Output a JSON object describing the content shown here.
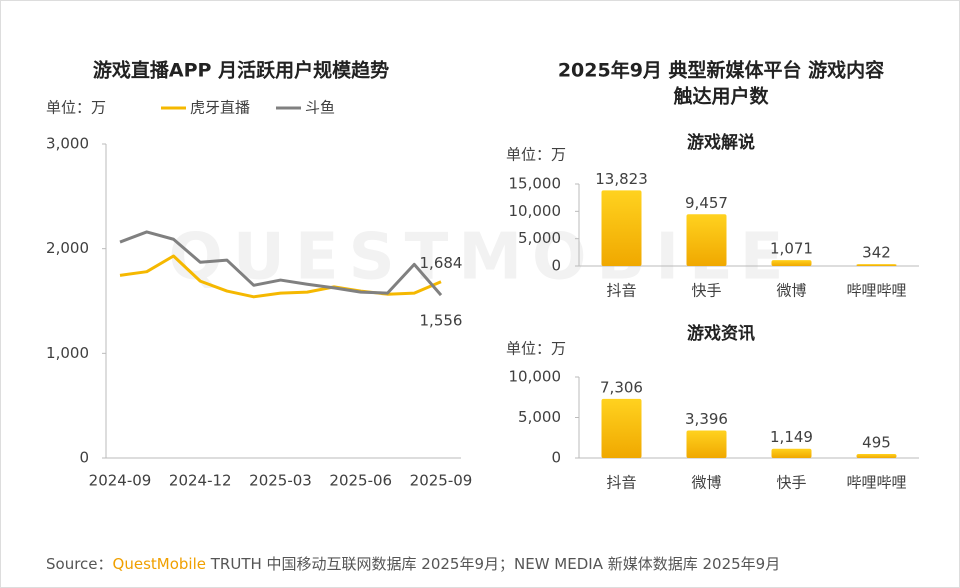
{
  "chart_data": [
    {
      "type": "line",
      "title": "游戏直播APP 月活跃用户规模趋势",
      "unit": "单位：万",
      "categories": [
        "2024-09",
        null,
        null,
        "2024-12",
        null,
        null,
        "2025-03",
        null,
        null,
        "2025-06",
        null,
        null,
        "2025-09"
      ],
      "series": [
        {
          "name": "虎牙直播",
          "color": "#f5b800",
          "values": [
            1745,
            1780,
            1930,
            1690,
            1595,
            1540,
            1575,
            1585,
            1635,
            1595,
            1565,
            1575,
            1684
          ],
          "value_labels": [
            null,
            null,
            null,
            null,
            null,
            null,
            null,
            null,
            null,
            null,
            null,
            null,
            "1,684"
          ]
        },
        {
          "name": "斗鱼",
          "color": "#808080",
          "values": [
            2063,
            2160,
            2090,
            1870,
            1890,
            1650,
            1700,
            1660,
            1625,
            1585,
            1575,
            1850,
            1556
          ],
          "value_labels": [
            null,
            null,
            null,
            null,
            null,
            null,
            null,
            null,
            null,
            null,
            null,
            null,
            "1,556"
          ]
        }
      ],
      "ylim": [
        0,
        3000
      ],
      "yticks": [
        0,
        {
          "value": 1000,
          "label": "1,000"
        },
        {
          "value": 2000,
          "label": "2,000"
        },
        {
          "value": 3000,
          "label": "3,000"
        }
      ]
    },
    {
      "type": "bar",
      "title": "游戏解说",
      "unit": "单位：万",
      "categories": [
        "抖音",
        "快手",
        "微博",
        "哔哩哔哩"
      ],
      "values": [
        13823,
        9457,
        1071,
        342
      ],
      "value_labels": [
        "13,823",
        "9,457",
        "1,071",
        "342"
      ],
      "color": "#f5b800",
      "ylim": [
        0,
        15000
      ],
      "yticks": [
        0,
        {
          "value": 5000,
          "label": "5,000"
        },
        {
          "value": 10000,
          "label": "10,000"
        },
        {
          "value": 15000,
          "label": "15,000"
        }
      ]
    },
    {
      "type": "bar",
      "title": "游戏资讯",
      "unit": "单位：万",
      "categories": [
        "抖音",
        "微博",
        "快手",
        "哔哩哔哩"
      ],
      "values": [
        7306,
        3396,
        1149,
        495
      ],
      "value_labels": [
        "7,306",
        "3,396",
        "1,149",
        "495"
      ],
      "color": "#f5b800",
      "ylim": [
        0,
        10000
      ],
      "yticks": [
        0,
        {
          "value": 5000,
          "label": "5,000"
        },
        {
          "value": 10000,
          "label": "10,000"
        }
      ]
    }
  ],
  "right_title_lines": [
    "2025年9月 典型新媒体平台 游戏内容",
    "触达用户数"
  ],
  "watermark": "QUESTMOBILE",
  "source": {
    "label": "Source：",
    "brand": "QuestMobile",
    "text": " TRUTH 中国移动互联网数据库 2025年9月；NEW MEDIA 新媒体数据库 2025年9月"
  }
}
